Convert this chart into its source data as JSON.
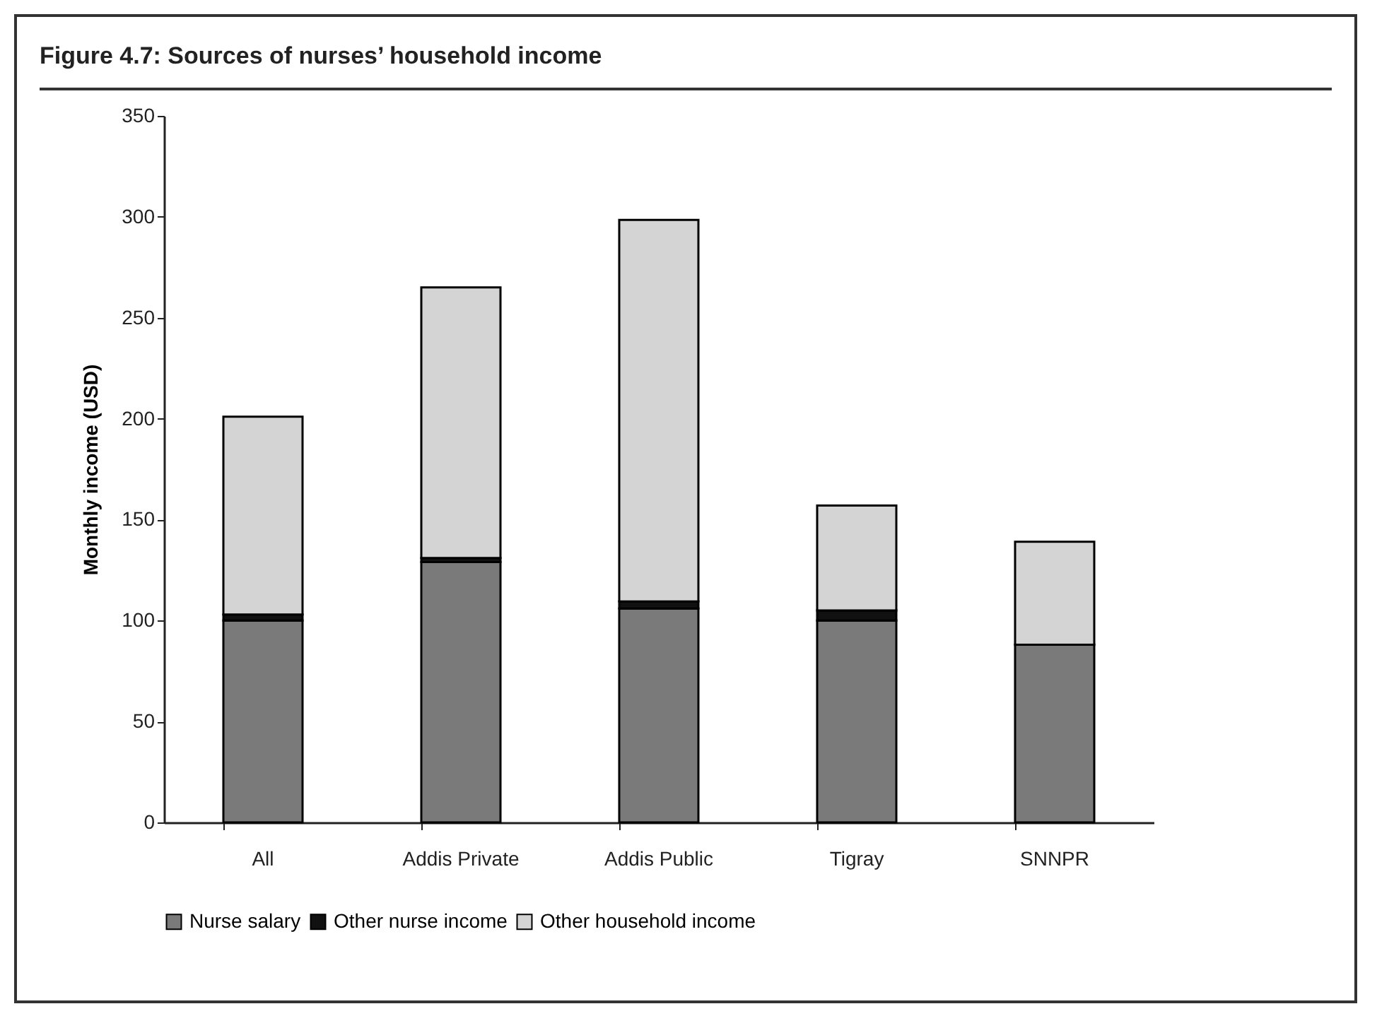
{
  "chart_data": {
    "type": "bar",
    "title": "Figure 4.7: Sources of nurses’ household income",
    "ylabel": "Monthly income (USD)",
    "categories": [
      "All",
      "Addis Private",
      "Addis Public",
      "Tigray",
      "SNNPR"
    ],
    "series": [
      {
        "name": "Nurse salary",
        "color": "#7a7a7a",
        "values": [
          100,
          129,
          106,
          100,
          88
        ]
      },
      {
        "name": "Other nurse income",
        "color": "#111111",
        "values": [
          3,
          2,
          3.5,
          5,
          0
        ]
      },
      {
        "name": "Other household income",
        "color": "#d4d4d4",
        "values": [
          98,
          134,
          189,
          52,
          51
        ]
      }
    ],
    "stacked": true,
    "ylim": [
      0,
      350
    ],
    "yticks": [
      0,
      50,
      100,
      150,
      200,
      250,
      300,
      350
    ],
    "grid": false,
    "legend": "bottom"
  }
}
